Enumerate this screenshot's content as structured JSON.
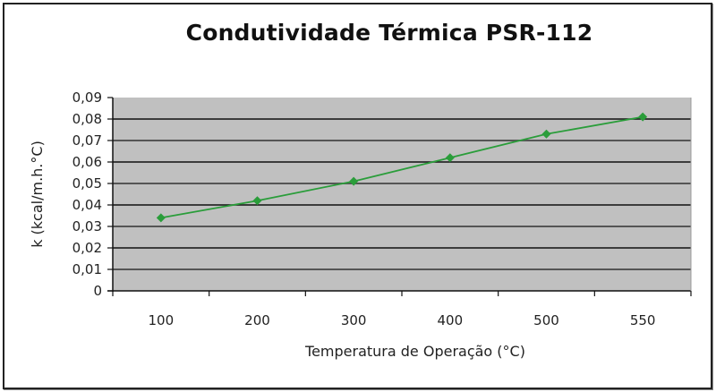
{
  "chart_data": {
    "type": "line",
    "title": "Condutividade Térmica PSR-112",
    "xlabel": "Temperatura de Operação (°C)",
    "ylabel": "k (kcal/m.h.°C)",
    "categories": [
      "100",
      "200",
      "300",
      "400",
      "500",
      "550"
    ],
    "series": [
      {
        "name": "k",
        "values": [
          0.034,
          0.042,
          0.051,
          0.062,
          0.073,
          0.081
        ],
        "color": "#2a9d3a",
        "marker": "diamond"
      }
    ],
    "ylim": [
      0,
      0.09
    ],
    "yticks": [
      "0",
      "0,01",
      "0,02",
      "0,03",
      "0,04",
      "0,05",
      "0,06",
      "0,07",
      "0,08",
      "0,09"
    ],
    "grid": true,
    "plot_background": "#c0c0c0",
    "legend": "none"
  }
}
